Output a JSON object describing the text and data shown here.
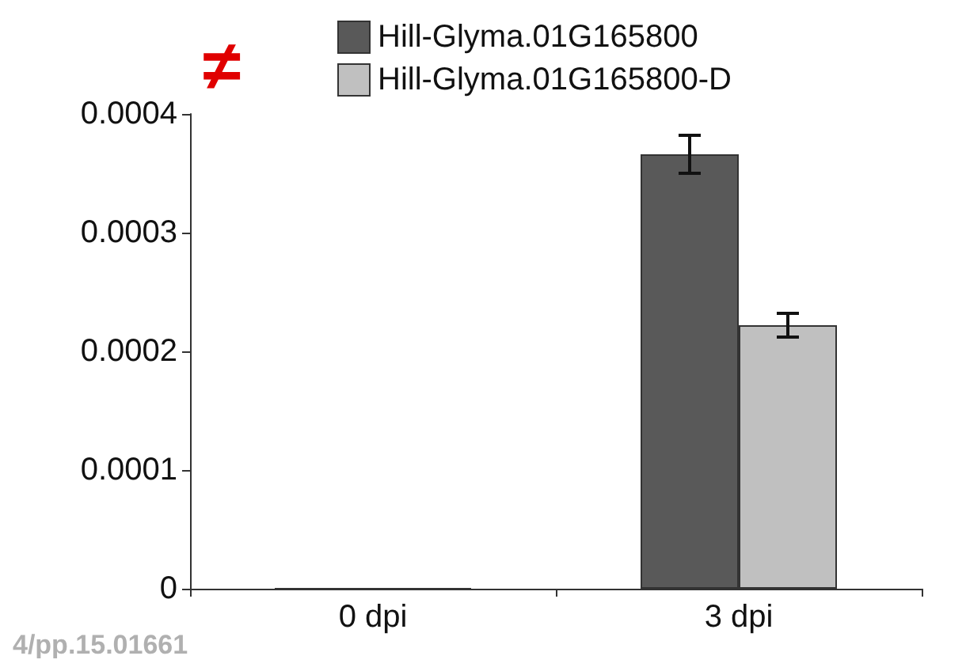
{
  "chart_data": {
    "type": "bar",
    "categories": [
      "0 dpi",
      "3 dpi"
    ],
    "series": [
      {
        "name": "Hill-Glyma.01G165800",
        "color": "#595959",
        "values": [
          0,
          0.000366
        ],
        "errors": [
          null,
          1.6e-05
        ]
      },
      {
        "name": "Hill-Glyma.01G165800-D",
        "color": "#c0c0c0",
        "values": [
          0,
          0.000222
        ],
        "errors": [
          null,
          1e-05
        ]
      }
    ],
    "ylim": [
      0,
      0.0004
    ],
    "yticks": [
      0,
      0.0001,
      0.0002,
      0.0003,
      0.0004
    ],
    "grid": false,
    "legend": "top",
    "annotations": [
      "≠",
      "4/pp.15.01661"
    ]
  }
}
